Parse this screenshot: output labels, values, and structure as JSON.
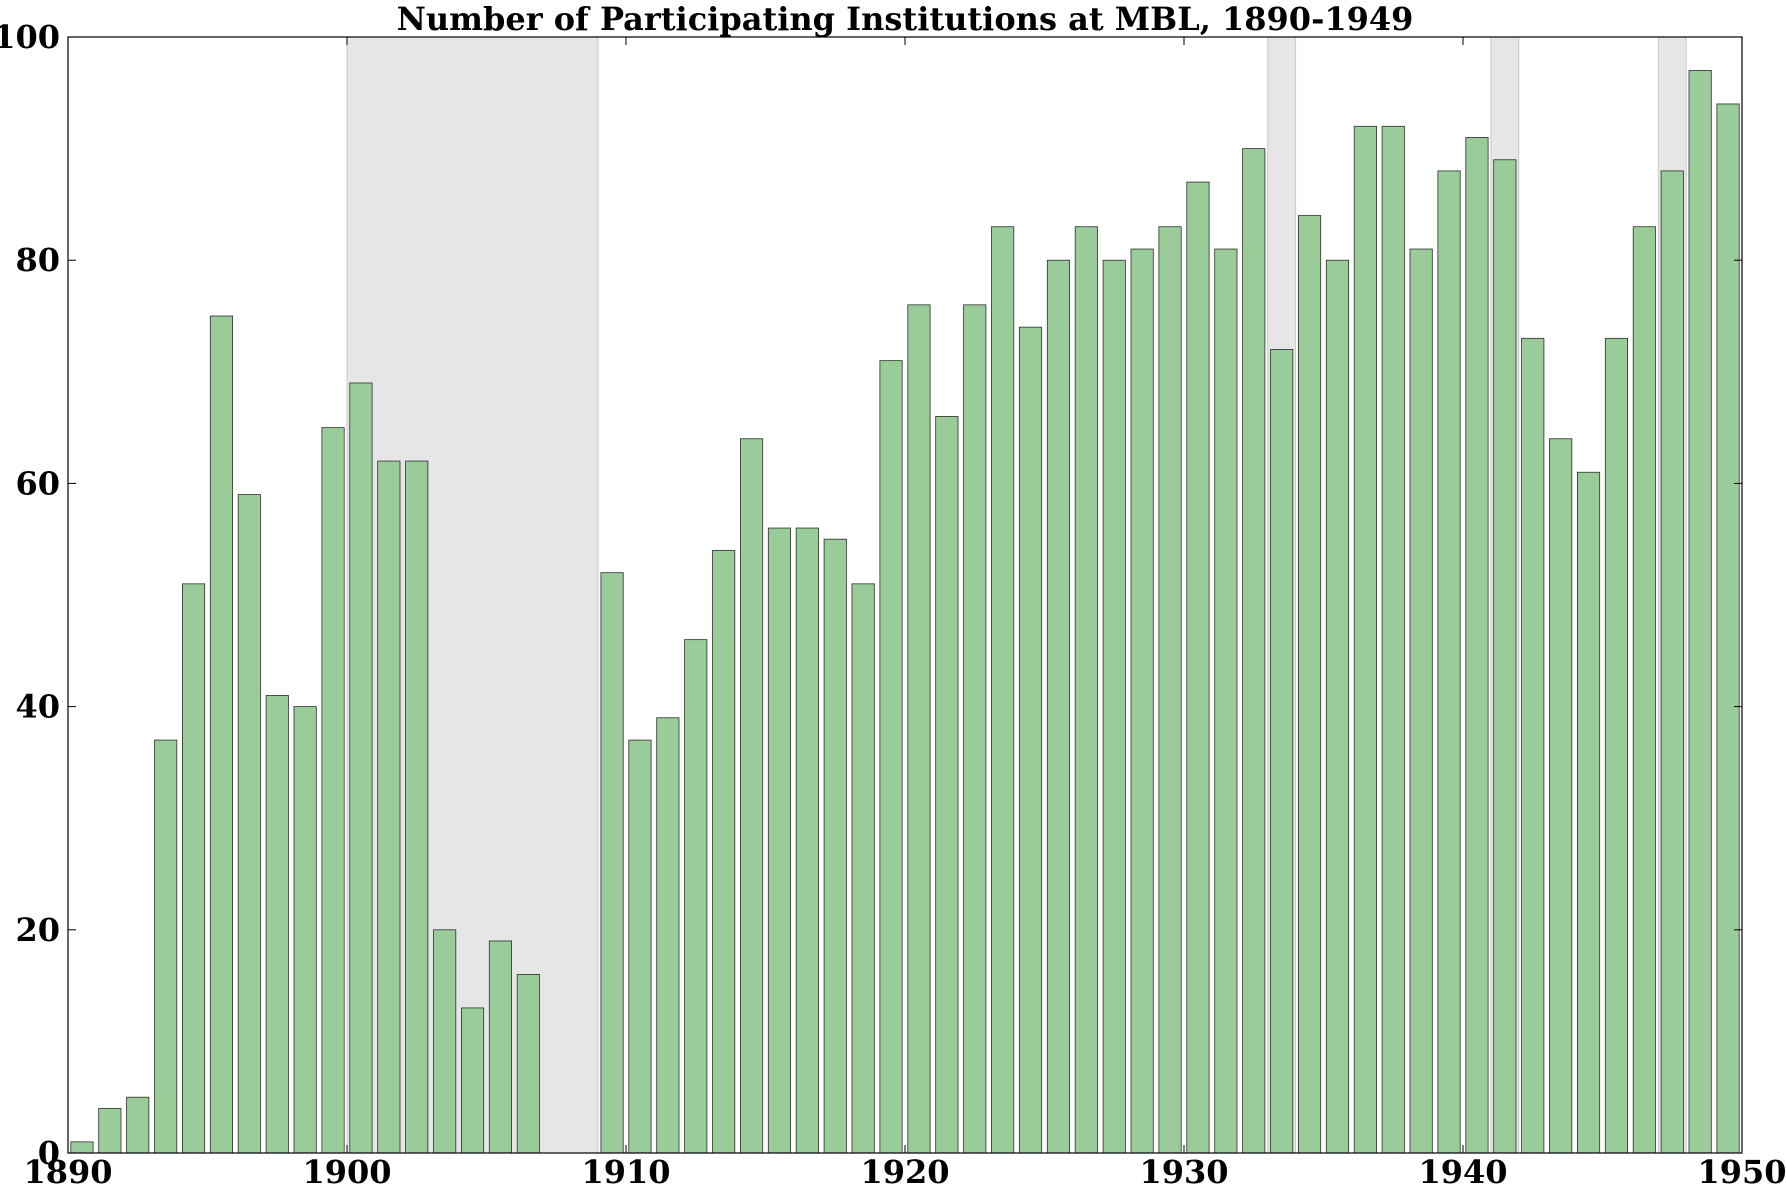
{
  "chart_data": {
    "type": "bar",
    "title": "Number of Participating Institutions at MBL, 1890-1949",
    "xlabel": "",
    "ylabel": "",
    "xlim": [
      1890,
      1950
    ],
    "ylim": [
      0,
      100
    ],
    "x_ticks": [
      "1890",
      "1900",
      "1910",
      "1920",
      "1930",
      "1940",
      "1950"
    ],
    "y_ticks": [
      "0",
      "20",
      "40",
      "60",
      "80",
      "100"
    ],
    "grid": false,
    "legend": "none",
    "bar_color": "#99cc99",
    "shade_color": "#808080",
    "shaded_ranges": [
      [
        1900,
        1909
      ],
      [
        1933,
        1934
      ],
      [
        1941,
        1942
      ],
      [
        1947,
        1948
      ]
    ],
    "x": [
      1890,
      1891,
      1892,
      1893,
      1894,
      1895,
      1896,
      1897,
      1898,
      1899,
      1900,
      1901,
      1902,
      1903,
      1904,
      1905,
      1906,
      1907,
      1908,
      1909,
      1910,
      1911,
      1912,
      1913,
      1914,
      1915,
      1916,
      1917,
      1918,
      1919,
      1920,
      1921,
      1922,
      1923,
      1924,
      1925,
      1926,
      1927,
      1928,
      1929,
      1930,
      1931,
      1932,
      1933,
      1934,
      1935,
      1936,
      1937,
      1938,
      1939,
      1940,
      1941,
      1942,
      1943,
      1944,
      1945,
      1946,
      1947,
      1948,
      1949
    ],
    "values": [
      1,
      4,
      5,
      37,
      51,
      75,
      59,
      41,
      40,
      65,
      69,
      62,
      62,
      20,
      13,
      19,
      16,
      0,
      0,
      52,
      37,
      39,
      46,
      54,
      64,
      56,
      56,
      55,
      51,
      71,
      76,
      66,
      76,
      83,
      74,
      80,
      83,
      80,
      81,
      83,
      87,
      81,
      90,
      72,
      84,
      80,
      92,
      92,
      81,
      88,
      91,
      89,
      73,
      64,
      61,
      73,
      83,
      88,
      97,
      94
    ]
  }
}
